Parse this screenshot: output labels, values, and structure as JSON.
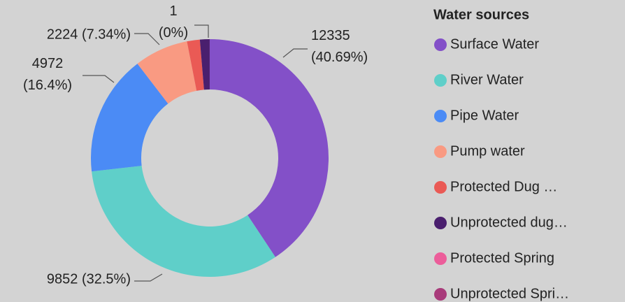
{
  "chart_data": {
    "type": "donut",
    "legend_title": "Water sources",
    "categories": [
      "Surface Water",
      "River Water",
      "Pipe Water",
      "Pump water",
      "Protected Dug …",
      "Unprotected dug…",
      "Protected Spring",
      "Unprotected Spri…"
    ],
    "values": [
      12335,
      9852,
      4972,
      2224,
      530,
      401,
      1,
      0
    ],
    "value_labels": [
      "12335 (40.69%)",
      "9852 (32.5%)",
      "4972 (16.4%)",
      "2224 (7.34%)",
      null,
      null,
      "1 (0%)",
      null
    ],
    "colors": [
      "#8350c8",
      "#5fcfc9",
      "#4b8bf5",
      "#f99a82",
      "#ea5a55",
      "#4a1f6e",
      "#ec5d9a",
      "#a83a7a"
    ],
    "legend": "right"
  }
}
